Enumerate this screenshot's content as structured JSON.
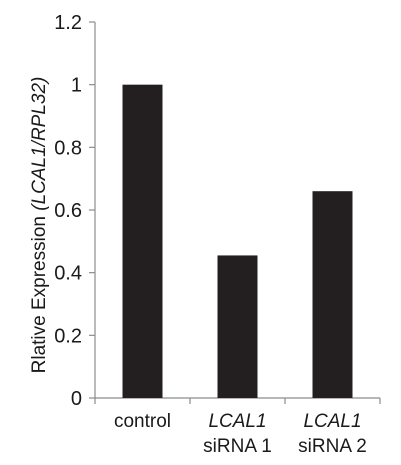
{
  "chart_data": {
    "type": "bar",
    "categories": [
      {
        "lines": [
          {
            "text": "control",
            "italic": false
          }
        ]
      },
      {
        "lines": [
          {
            "text": "LCAL1",
            "italic": true
          },
          {
            "text": "siRNA 1",
            "italic": false
          }
        ]
      },
      {
        "lines": [
          {
            "text": "LCAL1",
            "italic": true
          },
          {
            "text": "siRNA 2",
            "italic": false
          }
        ]
      }
    ],
    "values": [
      1.0,
      0.455,
      0.66
    ],
    "ylabel": {
      "plain": "Rlative Expression",
      "italic": "(LCAL1/RPL32)"
    },
    "ylim": [
      0,
      1.2
    ],
    "yticks": [
      0,
      0.2,
      0.4,
      0.6,
      0.8,
      1,
      1.2
    ],
    "ytick_labels": [
      "0",
      "0.2",
      "0.4",
      "0.6",
      "0.8",
      "1",
      "1.2"
    ],
    "grid": false,
    "legend": "none",
    "bar_color": "#231f20",
    "axis_color": "#8c8c8c"
  }
}
